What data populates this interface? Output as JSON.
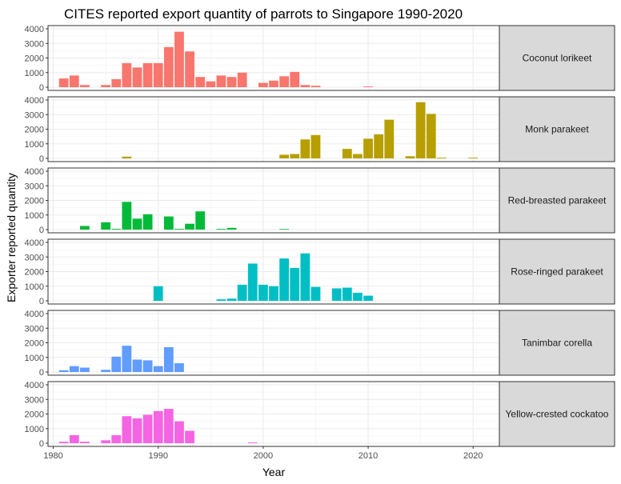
{
  "chart_data": {
    "type": "bar",
    "title": "CITES reported export quantity of parrots to Singapore 1990-2020",
    "xlabel": "Year",
    "ylabel": "Exporter reported quantity",
    "xlim": [
      1979.5,
      2022.5
    ],
    "ylim": [
      0,
      4000
    ],
    "x_ticks": [
      1980,
      1990,
      2000,
      2010,
      2020
    ],
    "y_ticks": [
      0,
      1000,
      2000,
      3000,
      4000
    ],
    "grid": true,
    "facet_strip_position": "right",
    "panels": [
      {
        "name": "Coconut lorikeet",
        "color": "#F8766D",
        "x": [
          1981,
          1982,
          1983,
          1985,
          1986,
          1987,
          1988,
          1989,
          1990,
          1991,
          1992,
          1993,
          1994,
          1995,
          1996,
          1997,
          1998,
          2000,
          2001,
          2002,
          2003,
          2004,
          2005,
          2010
        ],
        "values": [
          600,
          800,
          150,
          150,
          550,
          1650,
          1350,
          1650,
          1650,
          2750,
          3800,
          2450,
          700,
          400,
          800,
          700,
          1000,
          300,
          450,
          750,
          1050,
          150,
          100,
          50
        ]
      },
      {
        "name": "Monk parakeet",
        "color": "#B79F00",
        "x": [
          1987,
          2002,
          2003,
          2004,
          2005,
          2008,
          2009,
          2010,
          2011,
          2012,
          2014,
          2015,
          2016,
          2017,
          2020
        ],
        "values": [
          120,
          250,
          300,
          1300,
          1600,
          650,
          300,
          1350,
          1650,
          2650,
          150,
          3850,
          3050,
          50,
          50
        ]
      },
      {
        "name": "Red-breasted parakeet",
        "color": "#00BA38",
        "x": [
          1983,
          1985,
          1986,
          1987,
          1988,
          1989,
          1991,
          1992,
          1993,
          1994,
          1996,
          1997,
          2002
        ],
        "values": [
          250,
          500,
          50,
          1900,
          750,
          1050,
          900,
          50,
          400,
          1250,
          50,
          120,
          40
        ]
      },
      {
        "name": "Rose-ringed parakeet",
        "color": "#00BFC4",
        "x": [
          1990,
          1996,
          1997,
          1998,
          1999,
          2000,
          2001,
          2002,
          2003,
          2004,
          2005,
          2007,
          2008,
          2009,
          2010
        ],
        "values": [
          1000,
          100,
          150,
          1100,
          2550,
          1100,
          1000,
          2900,
          2250,
          3250,
          950,
          850,
          900,
          550,
          350
        ]
      },
      {
        "name": "Tanimbar corella",
        "color": "#619CFF",
        "x": [
          1981,
          1982,
          1983,
          1985,
          1986,
          1987,
          1988,
          1989,
          1990,
          1991,
          1992
        ],
        "values": [
          120,
          400,
          300,
          150,
          1050,
          1800,
          850,
          800,
          400,
          1700,
          600
        ]
      },
      {
        "name": "Yellow-crested cockatoo",
        "color": "#F564E3",
        "x": [
          1981,
          1982,
          1983,
          1985,
          1986,
          1987,
          1988,
          1989,
          1990,
          1991,
          1992,
          1993,
          1999
        ],
        "values": [
          100,
          550,
          100,
          200,
          550,
          1850,
          1700,
          1950,
          2200,
          2350,
          1500,
          850,
          50
        ]
      }
    ]
  }
}
